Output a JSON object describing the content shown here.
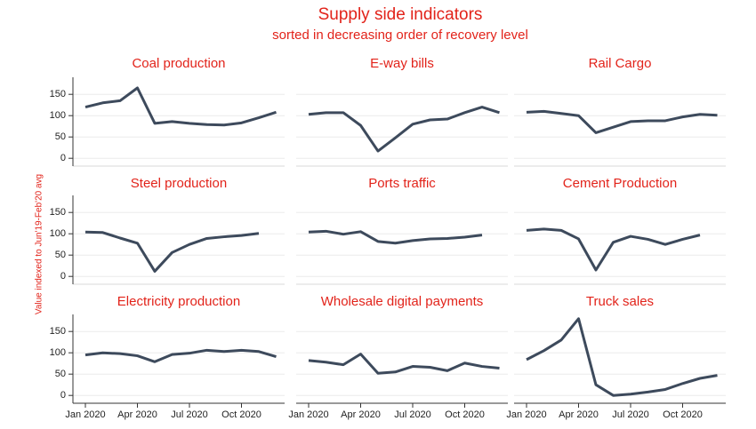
{
  "title": "Supply side indicators",
  "subtitle": "sorted in decreasing order of recovery level",
  "y_label": "Value indexed to Jun'19-Feb'20 avg",
  "chart_data": [
    {
      "type": "line",
      "title": "Coal production",
      "color": "#3d4a5c",
      "categories": [
        "Jan 2020",
        null,
        null,
        "Apr 2020",
        null,
        null,
        "Jul 2020",
        null,
        null,
        "Oct 2020",
        null,
        null
      ],
      "values": [
        120,
        130,
        135,
        165,
        82,
        86,
        82,
        79,
        78,
        83,
        95,
        108
      ],
      "ylim": [
        -10,
        190
      ],
      "yticks": [
        0,
        50,
        100,
        150
      ],
      "grid": true
    },
    {
      "type": "line",
      "title": "E-way bills",
      "color": "#3d4a5c",
      "categories": [
        "Jan 2020",
        null,
        null,
        "Apr 2020",
        null,
        null,
        "Jul 2020",
        null,
        null,
        "Oct 2020",
        null,
        null
      ],
      "values": [
        103,
        107,
        107,
        77,
        17,
        48,
        80,
        90,
        92,
        107,
        120,
        107
      ],
      "ylim": [
        -10,
        190
      ],
      "yticks": [
        0,
        50,
        100,
        150
      ],
      "grid": true
    },
    {
      "type": "line",
      "title": "Rail Cargo",
      "color": "#3d4a5c",
      "categories": [
        "Jan 2020",
        null,
        null,
        "Apr 2020",
        null,
        null,
        "Jul 2020",
        null,
        null,
        "Oct 2020",
        null,
        null
      ],
      "values": [
        108,
        110,
        105,
        100,
        60,
        73,
        86,
        88,
        88,
        97,
        103,
        101
      ],
      "ylim": [
        -10,
        190
      ],
      "yticks": [
        0,
        50,
        100,
        150
      ],
      "grid": true
    },
    {
      "type": "line",
      "title": "Steel production",
      "color": "#3d4a5c",
      "categories": [
        "Jan 2020",
        null,
        null,
        "Apr 2020",
        null,
        null,
        "Jul 2020",
        null,
        null,
        "Oct 2020",
        null,
        null
      ],
      "values": [
        104,
        103,
        90,
        78,
        12,
        56,
        75,
        89,
        93,
        96,
        101,
        null
      ],
      "ylim": [
        -10,
        190
      ],
      "yticks": [
        0,
        50,
        100,
        150
      ],
      "grid": true
    },
    {
      "type": "line",
      "title": "Ports traffic",
      "color": "#3d4a5c",
      "categories": [
        "Jan 2020",
        null,
        null,
        "Apr 2020",
        null,
        null,
        "Jul 2020",
        null,
        null,
        "Oct 2020",
        null,
        null
      ],
      "values": [
        104,
        106,
        99,
        105,
        82,
        78,
        84,
        88,
        89,
        92,
        97,
        null
      ],
      "ylim": [
        -10,
        190
      ],
      "yticks": [
        0,
        50,
        100,
        150
      ],
      "grid": true
    },
    {
      "type": "line",
      "title": "Cement Production",
      "color": "#3d4a5c",
      "categories": [
        "Jan 2020",
        null,
        null,
        "Apr 2020",
        null,
        null,
        "Jul 2020",
        null,
        null,
        "Oct 2020",
        null,
        null
      ],
      "values": [
        108,
        111,
        108,
        88,
        15,
        80,
        94,
        87,
        75,
        87,
        97,
        null
      ],
      "ylim": [
        -10,
        190
      ],
      "yticks": [
        0,
        50,
        100,
        150
      ],
      "grid": true
    },
    {
      "type": "line",
      "title": "Electricity production",
      "color": "#3d4a5c",
      "categories": [
        "Jan 2020",
        null,
        null,
        "Apr 2020",
        null,
        null,
        "Jul 2020",
        null,
        null,
        "Oct 2020",
        null,
        null
      ],
      "values": [
        95,
        100,
        98,
        93,
        79,
        96,
        99,
        106,
        103,
        106,
        103,
        91
      ],
      "ylim": [
        -10,
        190
      ],
      "yticks": [
        0,
        50,
        100,
        150
      ],
      "grid": true
    },
    {
      "type": "line",
      "title": "Wholesale digital payments",
      "color": "#3d4a5c",
      "categories": [
        "Jan 2020",
        null,
        null,
        "Apr 2020",
        null,
        null,
        "Jul 2020",
        null,
        null,
        "Oct 2020",
        null,
        null
      ],
      "values": [
        82,
        78,
        72,
        97,
        52,
        55,
        68,
        66,
        58,
        76,
        68,
        64
      ],
      "ylim": [
        -10,
        190
      ],
      "yticks": [
        0,
        50,
        100,
        150
      ],
      "grid": true
    },
    {
      "type": "line",
      "title": "Truck sales",
      "color": "#3d4a5c",
      "categories": [
        "Jan 2020",
        null,
        null,
        "Apr 2020",
        null,
        null,
        "Jul 2020",
        null,
        null,
        "Oct 2020",
        null,
        null
      ],
      "values": [
        84,
        105,
        130,
        180,
        25,
        0,
        3,
        8,
        14,
        28,
        40,
        47
      ],
      "ylim": [
        -10,
        190
      ],
      "yticks": [
        0,
        50,
        100,
        150
      ],
      "grid": true
    }
  ]
}
